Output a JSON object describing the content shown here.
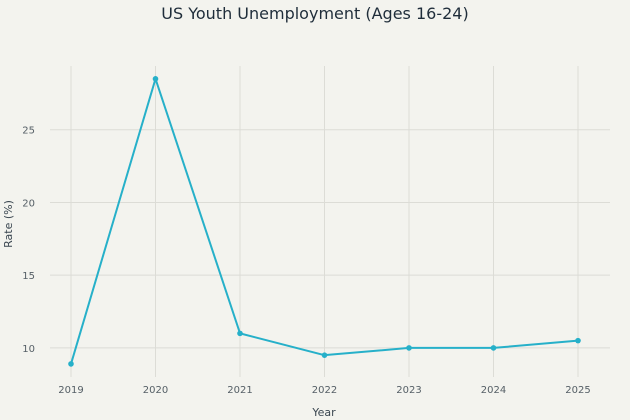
{
  "chart_data": {
    "type": "line",
    "title": "US Youth Unemployment (Ages 16-24)",
    "xlabel": "Year",
    "ylabel": "Rate (%)",
    "x": [
      "2019",
      "2020",
      "2021",
      "2022",
      "2023",
      "2024",
      "2025"
    ],
    "series": [
      {
        "values": [
          8.9,
          28.5,
          11.0,
          9.5,
          10.0,
          10.0,
          10.5
        ]
      }
    ],
    "yticks": [
      10,
      15,
      20,
      25
    ],
    "ylim": [
      8.0,
      30.0
    ],
    "grid": true,
    "legend": "none"
  },
  "colors": {
    "line": "#26b0c9",
    "background": "#f3f3ee"
  }
}
